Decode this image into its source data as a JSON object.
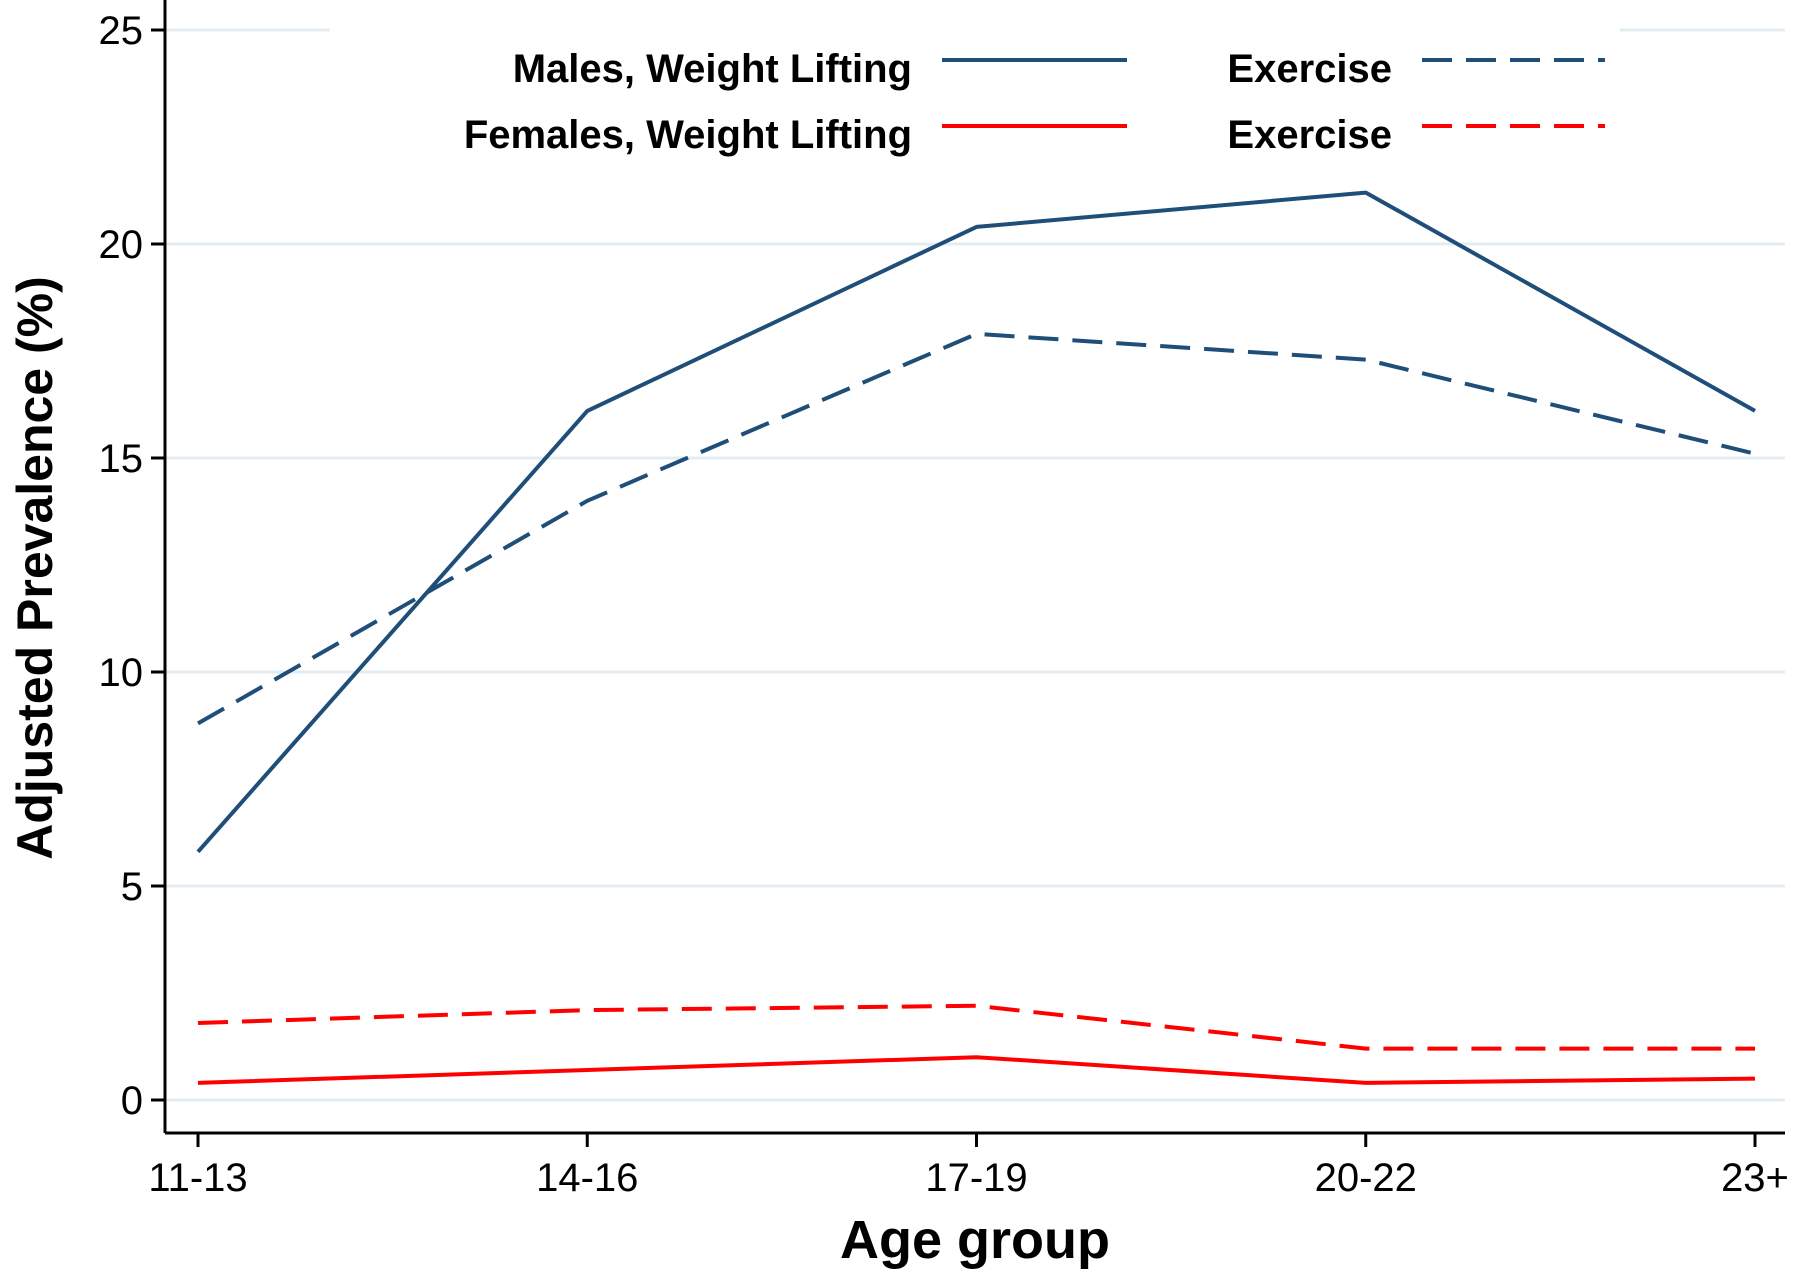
{
  "chart_data": {
    "type": "line",
    "title": "",
    "xlabel": "Age group",
    "ylabel": "Adjusted Prevalence (%)",
    "categories": [
      "11-13",
      "14-16",
      "17-19",
      "20-22",
      "23+"
    ],
    "ylim": [
      0,
      25
    ],
    "yticks": [
      0,
      5,
      10,
      15,
      20,
      25
    ],
    "grid": true,
    "legend_position": "top",
    "series": [
      {
        "name": "Males, Weight Lifting",
        "legend_label": "Males, Weight Lifting",
        "values": [
          5.8,
          16.1,
          20.4,
          21.2,
          16.1
        ],
        "color": "#1f4e79",
        "style": "solid"
      },
      {
        "name": "Males, Exercise",
        "legend_label": "Exercise",
        "values": [
          8.8,
          14.0,
          17.9,
          17.3,
          15.1
        ],
        "color": "#1f4e79",
        "style": "dashed"
      },
      {
        "name": "Females, Weight Lifting",
        "legend_label": "Females, Weight Lifting",
        "values": [
          0.4,
          0.7,
          1.0,
          0.4,
          0.5
        ],
        "color": "#ff0000",
        "style": "solid"
      },
      {
        "name": "Females, Exercise",
        "legend_label": "Exercise",
        "values": [
          1.8,
          2.1,
          2.2,
          1.2,
          1.2
        ],
        "color": "#ff0000",
        "style": "dashed"
      }
    ]
  }
}
